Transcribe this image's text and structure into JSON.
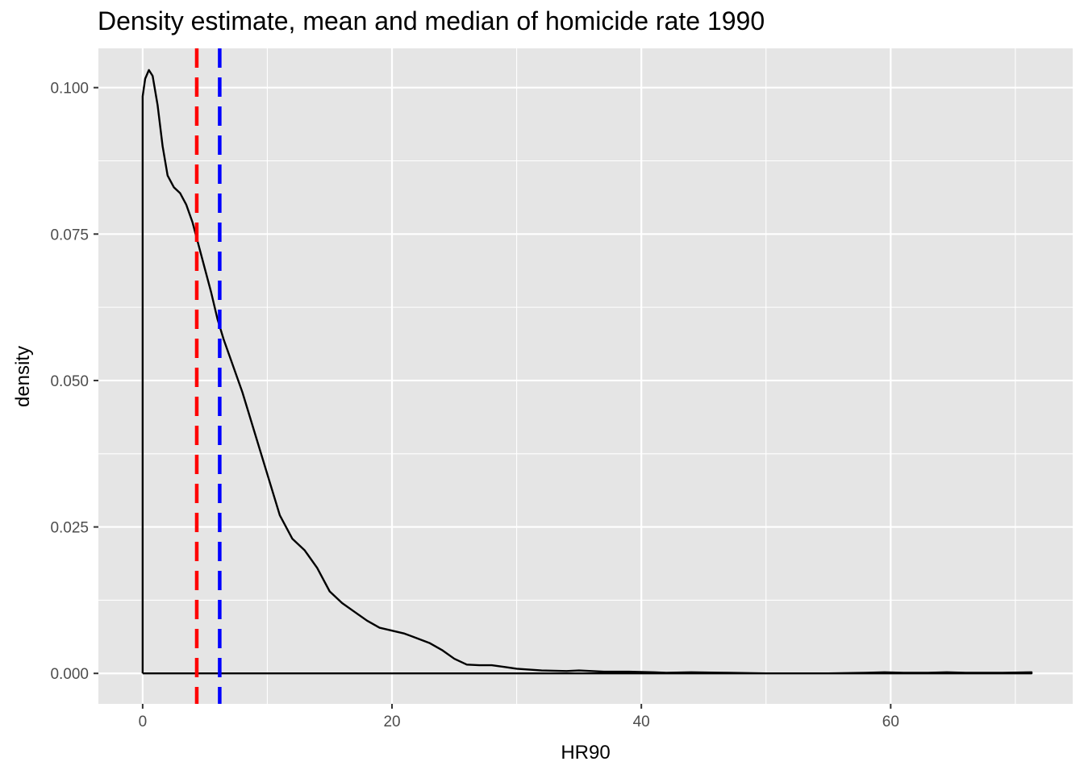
{
  "chart_data": {
    "type": "line",
    "title": "Density estimate, mean and median of homicide rate 1990",
    "xlabel": "HR90",
    "ylabel": "density",
    "xlim": [
      -3.55,
      74.6
    ],
    "ylim": [
      -0.0052,
      0.1067
    ],
    "x_ticks": [
      0,
      20,
      40,
      60
    ],
    "x_tick_labels": [
      "0",
      "20",
      "40",
      "60"
    ],
    "y_ticks": [
      0,
      0.025,
      0.05,
      0.075,
      0.1
    ],
    "y_tick_labels": [
      "0.000",
      "0.025",
      "0.050",
      "0.075",
      "0.100"
    ],
    "grid": true,
    "legend": "none",
    "series": [
      {
        "kind": "density",
        "color": "#000000",
        "x": [
          0,
          0,
          0.2,
          0.5,
          0.8,
          1.2,
          1.6,
          2.0,
          2.5,
          3.0,
          3.5,
          4.0,
          4.5,
          5.0,
          5.5,
          6.0,
          6.5,
          7.0,
          8.0,
          9.0,
          10.0,
          11.0,
          12.0,
          13.0,
          14.0,
          15.0,
          16.0,
          17.0,
          18.0,
          19.0,
          20.0,
          21.0,
          22.0,
          23.0,
          24.0,
          25.0,
          26.0,
          27.0,
          28.0,
          29.0,
          30.0,
          32.0,
          34.0,
          35.0,
          37.0,
          39.0,
          41.0,
          42.0,
          44.0,
          47.0,
          50.0,
          55.0,
          58.0,
          59.5,
          61.0,
          63.0,
          64.5,
          66.0,
          69.0,
          71.3,
          71.3,
          0
        ],
        "y": [
          0,
          0.0985,
          0.1015,
          0.103,
          0.102,
          0.097,
          0.09,
          0.085,
          0.083,
          0.082,
          0.08,
          0.077,
          0.073,
          0.069,
          0.065,
          0.0605,
          0.057,
          0.054,
          0.048,
          0.041,
          0.034,
          0.027,
          0.023,
          0.021,
          0.018,
          0.014,
          0.012,
          0.0105,
          0.009,
          0.0078,
          0.0073,
          0.0068,
          0.006,
          0.0052,
          0.004,
          0.0025,
          0.0015,
          0.0014,
          0.0014,
          0.0011,
          0.0008,
          0.0005,
          0.0004,
          0.0005,
          0.0003,
          0.0003,
          0.0002,
          0.0001,
          0.0002,
          0.0001,
          0.0,
          0.0,
          0.0001,
          0.0002,
          0.0001,
          0.0001,
          0.0002,
          0.0001,
          0.0001,
          0.0002,
          0,
          0
        ]
      }
    ],
    "vlines": [
      {
        "name": "median",
        "x": 4.34,
        "color": "#ff0000",
        "linetype": "dashed"
      },
      {
        "name": "mean",
        "x": 6.18,
        "color": "#0000ff",
        "linetype": "dashed"
      }
    ],
    "colors": {
      "panel_bg": "#e5e5e5",
      "grid": "#ffffff",
      "text": "#4d4d4d"
    }
  }
}
